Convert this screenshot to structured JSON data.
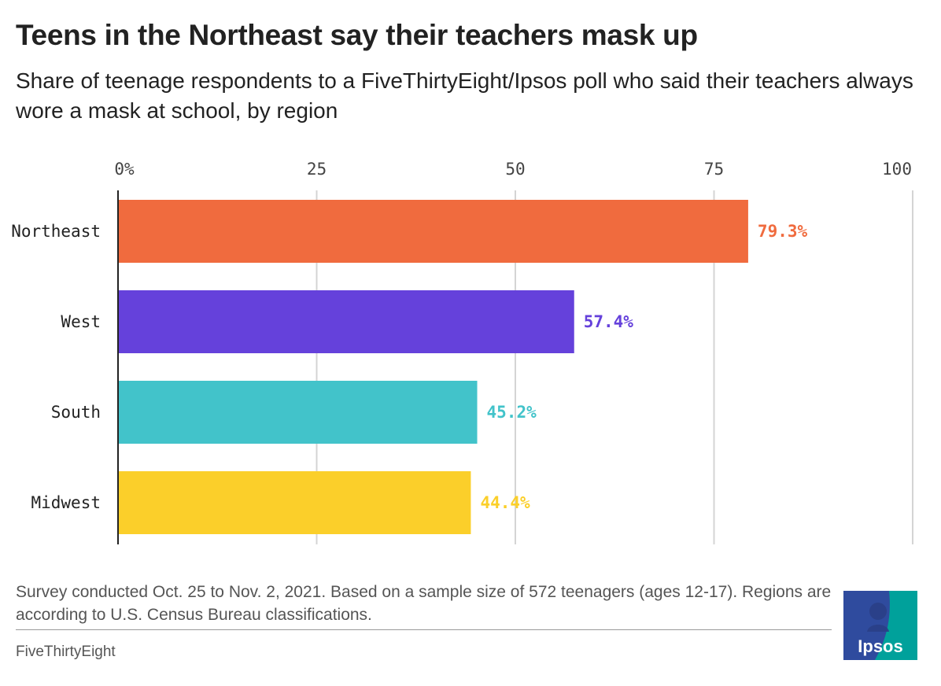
{
  "title": "Teens in the Northeast say their teachers mask up",
  "subtitle": "Share of teenage respondents to a FiveThirtyEight/Ipsos poll who said their teachers always wore a mask at school, by region",
  "chart_data": {
    "type": "bar",
    "orientation": "horizontal",
    "categories": [
      "Northeast",
      "West",
      "South",
      "Midwest"
    ],
    "values": [
      79.3,
      57.4,
      45.2,
      44.4
    ],
    "value_labels": [
      "79.3%",
      "57.4%",
      "45.2%",
      "44.4%"
    ],
    "colors": [
      "#f06b3e",
      "#6541db",
      "#42c3ca",
      "#fbcf2a"
    ],
    "xlim": [
      0,
      100
    ],
    "ticks": [
      0,
      25,
      50,
      75,
      100
    ],
    "tick_labels": [
      "0%",
      "25",
      "50",
      "75",
      "100"
    ],
    "grid": true,
    "xlabel": "",
    "ylabel": ""
  },
  "footnote": "Survey conducted Oct. 25 to Nov. 2, 2021. Based on a sample size of 572 teenagers (ages 12-17). Regions are according to U.S. Census Bureau classifications.",
  "source": "FiveThirtyEight",
  "logo": {
    "text": "Ipsos",
    "colors": {
      "blue": "#2f4b9e",
      "teal": "#00a19b",
      "text": "#ffffff"
    }
  }
}
